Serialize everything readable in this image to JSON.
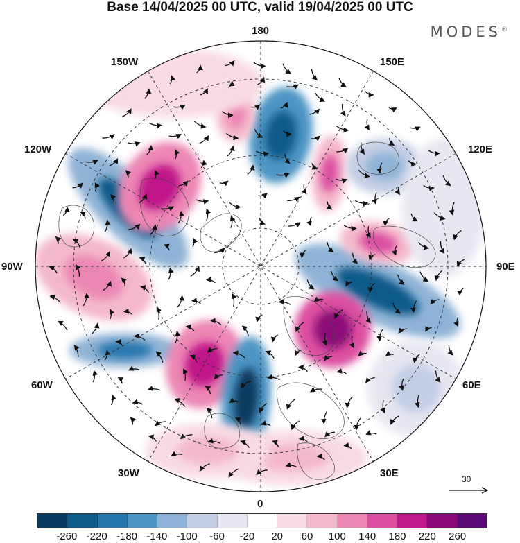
{
  "header": {
    "title": "Base 14/04/2025 00 UTC, valid 19/04/2025 00 UTC",
    "brand": "MODES"
  },
  "map": {
    "projection": "polar-stereographic-north",
    "graticule": "dashed",
    "longitude_labels": {
      "top": "180",
      "upper_left": "150W",
      "upper_right": "150E",
      "left_high": "120W",
      "right_high": "120E",
      "left": "90W",
      "right": "90E",
      "left_low": "60W",
      "right_low": "60E",
      "lower_left": "30W",
      "lower_right": "30E",
      "bottom": "0"
    },
    "reference_vector": "30",
    "anomaly_colors": {
      "negative_strong": "#08406a",
      "positive_strong": "#b0137f",
      "neutral": "#ffffff"
    }
  },
  "colorbar": {
    "ticks": [
      "-260",
      "-220",
      "-180",
      "-140",
      "-100",
      "-60",
      "-20",
      "20",
      "60",
      "100",
      "140",
      "180",
      "220",
      "260"
    ],
    "colors": [
      "#0a3a5e",
      "#0e5a89",
      "#2677ad",
      "#4d95c4",
      "#8fb3d6",
      "#c3cde4",
      "#e7e7f1",
      "#ffffff",
      "#f8dbe3",
      "#f4b8cb",
      "#ec86b3",
      "#dc4fa0",
      "#c0178a",
      "#8c0a78",
      "#5c0a75"
    ]
  }
}
